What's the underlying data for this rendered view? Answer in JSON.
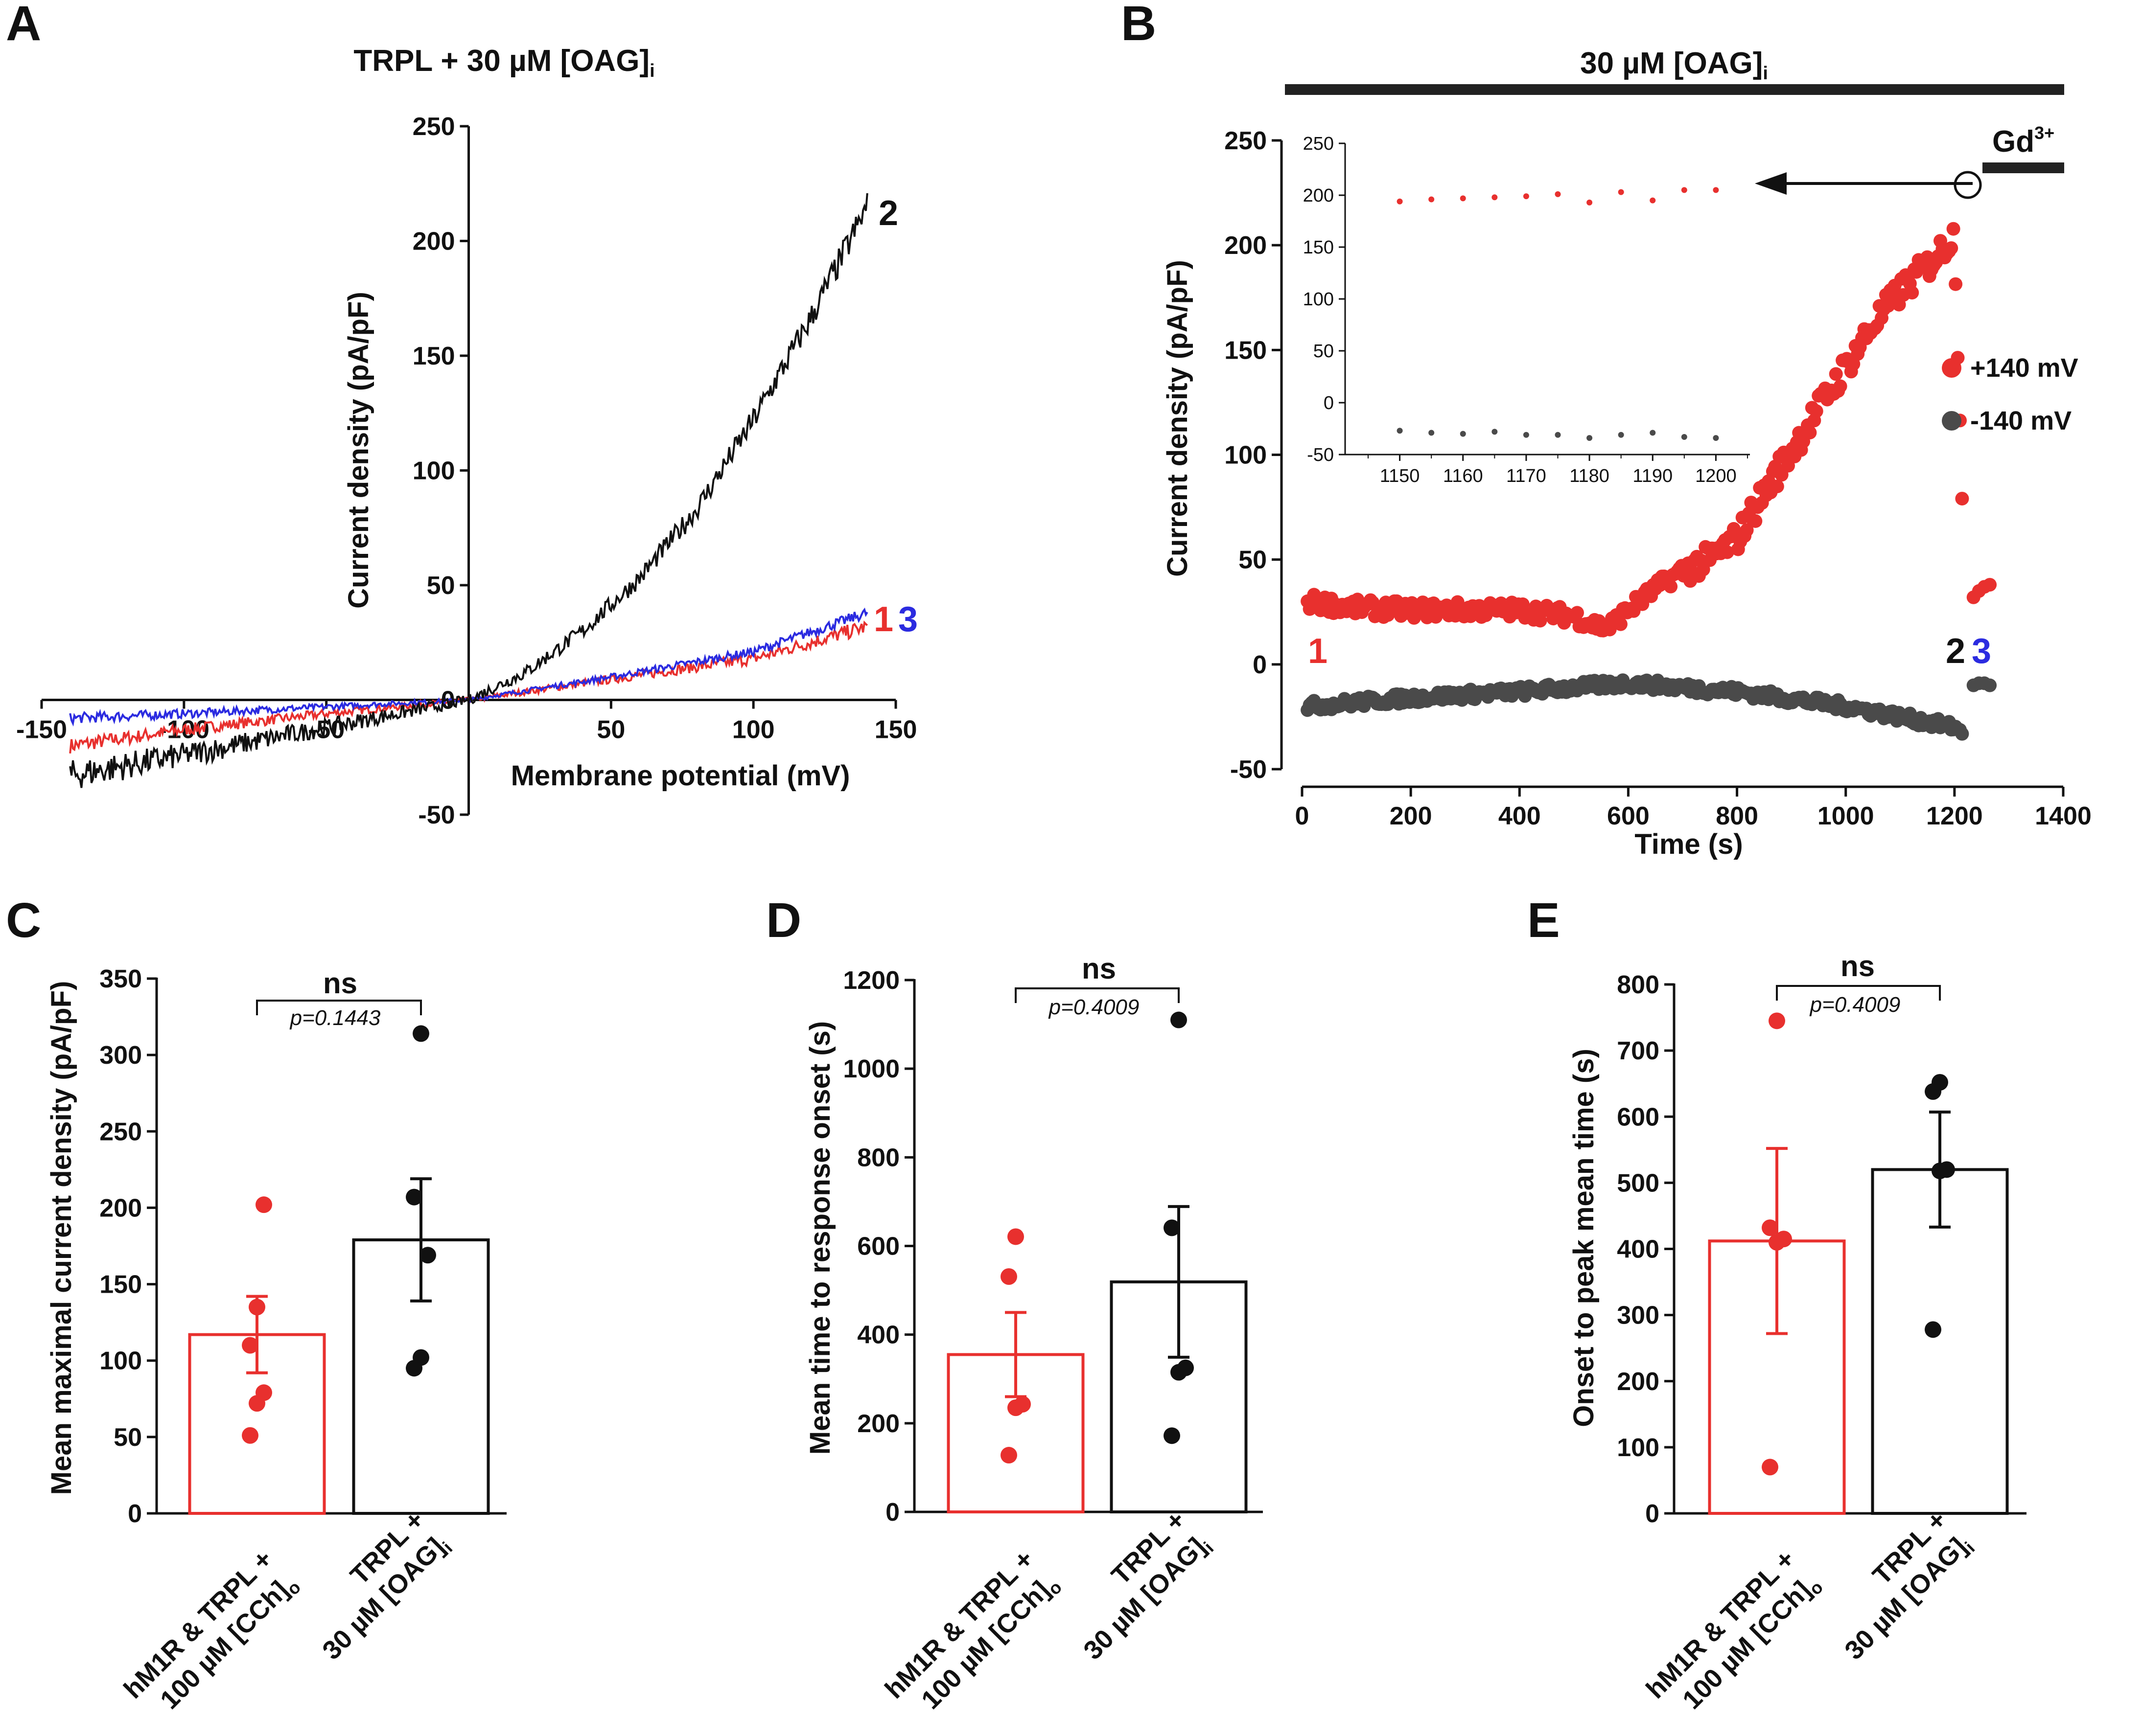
{
  "panels": {
    "A": {
      "letter": "A",
      "title": "TRPL +  30 µM [OAG]",
      "title_sub": "i",
      "trace_labels": [
        "2",
        "1",
        "3"
      ]
    },
    "B": {
      "letter": "B",
      "bar_label": "30 µM [OAG]",
      "bar_label_sub": "i",
      "gd_label": "Gd",
      "gd_sup": "3+",
      "point_labels": [
        "1",
        "2",
        "3"
      ]
    },
    "C": {
      "letter": "C",
      "ns": "ns",
      "pval": "p=0.1443"
    },
    "D": {
      "letter": "D",
      "ns": "ns",
      "pval": "p=0.4009"
    },
    "E": {
      "letter": "E",
      "ns": "ns",
      "pval": "p=0.4009"
    }
  },
  "colors": {
    "red": "#e8302e",
    "black": "#111111",
    "blue": "#2b2be0",
    "grey": "#4a4a4a"
  },
  "chart_data": [
    {
      "id": "A",
      "type": "line",
      "title": "TRPL +  30 µM [OAG]i",
      "xlabel": "Membrane potential (mV)",
      "ylabel": "Current density (pA/pF)",
      "xlim": [
        -150,
        150
      ],
      "ylim": [
        -50,
        250
      ],
      "xticks": [
        -150,
        -100,
        -50,
        50,
        100,
        150
      ],
      "yticks": [
        -50,
        50,
        100,
        150,
        200,
        250
      ],
      "series": [
        {
          "name": "1",
          "color": "#e8302e",
          "x": [
            -140,
            -100,
            -50,
            0,
            50,
            100,
            140
          ],
          "y": [
            -20,
            -13,
            -6,
            0,
            9,
            18,
            32
          ]
        },
        {
          "name": "2",
          "color": "#111111",
          "x": [
            -140,
            -100,
            -50,
            0,
            20,
            40,
            60,
            80,
            100,
            120,
            140
          ],
          "y": [
            -33,
            -24,
            -12,
            0,
            12,
            30,
            53,
            83,
            122,
            166,
            215
          ]
        },
        {
          "name": "3",
          "color": "#2b2be0",
          "x": [
            -140,
            -100,
            -50,
            0,
            50,
            100,
            140
          ],
          "y": [
            -8,
            -6,
            -3,
            0,
            10,
            21,
            38
          ]
        }
      ]
    },
    {
      "id": "B",
      "type": "scatter",
      "xlabel": "Time (s)",
      "ylabel": "Current density (pA/pF)",
      "xlim": [
        0,
        1400
      ],
      "ylim": [
        -50,
        250
      ],
      "xticks": [
        0,
        200,
        400,
        600,
        800,
        1000,
        1200,
        1400
      ],
      "yticks": [
        -50,
        0,
        50,
        100,
        150,
        200,
        250
      ],
      "legend": [
        {
          "label": "+140 mV",
          "color": "#e8302e"
        },
        {
          "label": "-140 mV",
          "color": "#4a4a4a"
        }
      ],
      "series": [
        {
          "name": "+140 mV",
          "color": "#e8302e",
          "x": [
            10,
            100,
            200,
            300,
            400,
            500,
            560,
            600,
            650,
            700,
            750,
            800,
            850,
            900,
            950,
            1000,
            1050,
            1100,
            1150,
            1200,
            1220,
            1240,
            1260
          ],
          "y": [
            30,
            27,
            26,
            26,
            26,
            23,
            17,
            26,
            36,
            45,
            50,
            60,
            82,
            102,
            122,
            142,
            162,
            178,
            190,
            205,
            32,
            36,
            38
          ]
        },
        {
          "name": "-140 mV",
          "color": "#4a4a4a",
          "x": [
            10,
            200,
            400,
            600,
            800,
            1000,
            1100,
            1200,
            1220,
            1240,
            1260
          ],
          "y": [
            -20,
            -16,
            -13,
            -9,
            -13,
            -20,
            -25,
            -30,
            -33,
            -10,
            -9
          ]
        }
      ],
      "inset": {
        "xlim": [
          1145,
          1205
        ],
        "ylim": [
          -50,
          250
        ],
        "xticks": [
          1150,
          1160,
          1170,
          1180,
          1190,
          1200
        ],
        "yticks": [
          -50,
          0,
          50,
          100,
          150,
          200,
          250
        ],
        "series": [
          {
            "name": "+140 mV",
            "x": [
              1150,
              1155,
              1160,
              1165,
              1170,
              1175,
              1180,
              1185,
              1190,
              1195,
              1200
            ],
            "y": [
              194,
              196,
              197,
              198,
              199,
              201,
              193,
              203,
              195,
              205,
              205
            ]
          },
          {
            "name": "-140 mV",
            "x": [
              1150,
              1155,
              1160,
              1165,
              1170,
              1175,
              1180,
              1185,
              1190,
              1195,
              1200
            ],
            "y": [
              -27,
              -29,
              -30,
              -28,
              -31,
              -31,
              -34,
              -31,
              -29,
              -33,
              -34
            ]
          }
        ]
      }
    },
    {
      "id": "C",
      "type": "bar",
      "ylabel": "Mean maximal current density (pA/pF)",
      "ylim": [
        0,
        350
      ],
      "yticks": [
        0,
        50,
        100,
        150,
        200,
        250,
        300,
        350
      ],
      "categories": [
        "hM1R & TRPL + 100 µM [CCh]o",
        "TRPL + 30 µM [OAG]i"
      ],
      "values": [
        117,
        179
      ],
      "errors": [
        25,
        40
      ],
      "points": [
        [
          51,
          72,
          79,
          110,
          135,
          202
        ],
        [
          95,
          102,
          169,
          207,
          314
        ]
      ],
      "significance": "ns",
      "p": "p=0.1443"
    },
    {
      "id": "D",
      "type": "bar",
      "ylabel": "Mean time to response onset (s)",
      "ylim": [
        0,
        1200
      ],
      "yticks": [
        0,
        200,
        400,
        600,
        800,
        1000,
        1200
      ],
      "categories": [
        "hM1R & TRPL + 100 µM [CCh]o",
        "TRPL + 30 µM [OAG]i"
      ],
      "values": [
        355,
        519
      ],
      "errors": [
        95,
        170
      ],
      "points": [
        [
          128,
          235,
          243,
          531,
          621
        ],
        [
          172,
          315,
          325,
          641,
          1110
        ]
      ],
      "significance": "ns",
      "p": "p=0.4009"
    },
    {
      "id": "E",
      "type": "bar",
      "ylabel": "Onset to peak mean time (s)",
      "ylim": [
        0,
        800
      ],
      "yticks": [
        0,
        100,
        200,
        300,
        400,
        500,
        600,
        700,
        800
      ],
      "categories": [
        "hM1R & TRPL + 100 µM [CCh]o",
        "TRPL + 30 µM [OAG]i"
      ],
      "values": [
        412,
        520
      ],
      "errors": [
        140,
        87
      ],
      "points": [
        [
          70,
          410,
          415,
          432,
          745
        ],
        [
          278,
          518,
          520,
          638,
          652
        ]
      ],
      "significance": "ns",
      "p": "p=0.4009"
    }
  ]
}
